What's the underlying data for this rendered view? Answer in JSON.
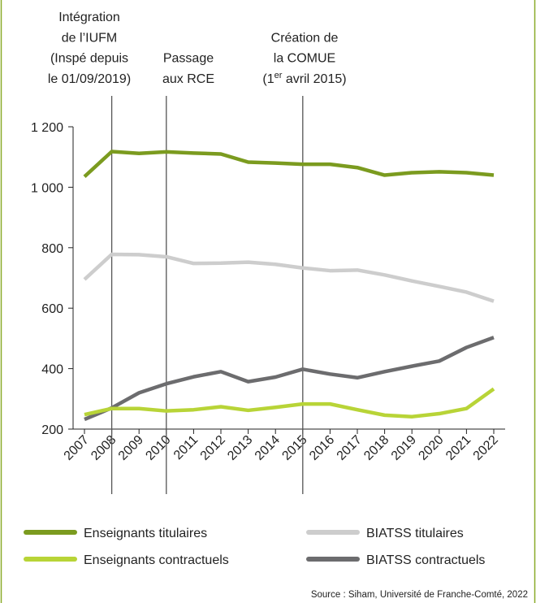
{
  "chart_data": {
    "type": "line",
    "categories": [
      "2007",
      "2008",
      "2009",
      "2010",
      "2011",
      "2012",
      "2013",
      "2014",
      "2015",
      "2016",
      "2017",
      "2018",
      "2019",
      "2020",
      "2021",
      "2022"
    ],
    "series": [
      {
        "name": "Enseignants titulaires",
        "color": "#7b9b1f",
        "values": [
          1035,
          1118,
          1112,
          1117,
          1113,
          1110,
          1083,
          1080,
          1076,
          1076,
          1065,
          1040,
          1048,
          1051,
          1048,
          1040
        ]
      },
      {
        "name": "BIATSS titulaires",
        "color": "#cdcdcd",
        "values": [
          695,
          778,
          777,
          770,
          748,
          749,
          752,
          745,
          733,
          724,
          726,
          710,
          690,
          672,
          653,
          623
        ]
      },
      {
        "name": "Enseignants contractuels",
        "color": "#b8d437",
        "values": [
          248,
          268,
          268,
          260,
          264,
          274,
          262,
          272,
          283,
          283,
          264,
          246,
          241,
          251,
          268,
          333
        ]
      },
      {
        "name": "BIATSS contractuels",
        "color": "#6c6c6e",
        "values": [
          232,
          270,
          320,
          350,
          373,
          390,
          357,
          372,
          398,
          382,
          370,
          390,
          408,
          425,
          470,
          503
        ]
      }
    ],
    "ylim": [
      200,
      1200
    ],
    "yticks": [
      200,
      400,
      600,
      800,
      {
        "value": 1000,
        "label": "1 000"
      },
      {
        "value": 1200,
        "label": "1 200"
      }
    ],
    "annotations": [
      {
        "category": 1,
        "lines": [
          "Intégration",
          "de l’IUFM",
          "(Inspé depuis",
          "le 01/09/2019)"
        ]
      },
      {
        "category": 3,
        "lines": [
          "Passage",
          "aux RCE"
        ]
      },
      {
        "category": 8,
        "lines": [
          "Création de",
          "la COMUE"
        ],
        "date": [
          "(1",
          "er",
          " avril 2015)"
        ]
      }
    ],
    "legend": "bottom",
    "source": "Source : Siham, Université de Franche-Comté, 2022"
  }
}
